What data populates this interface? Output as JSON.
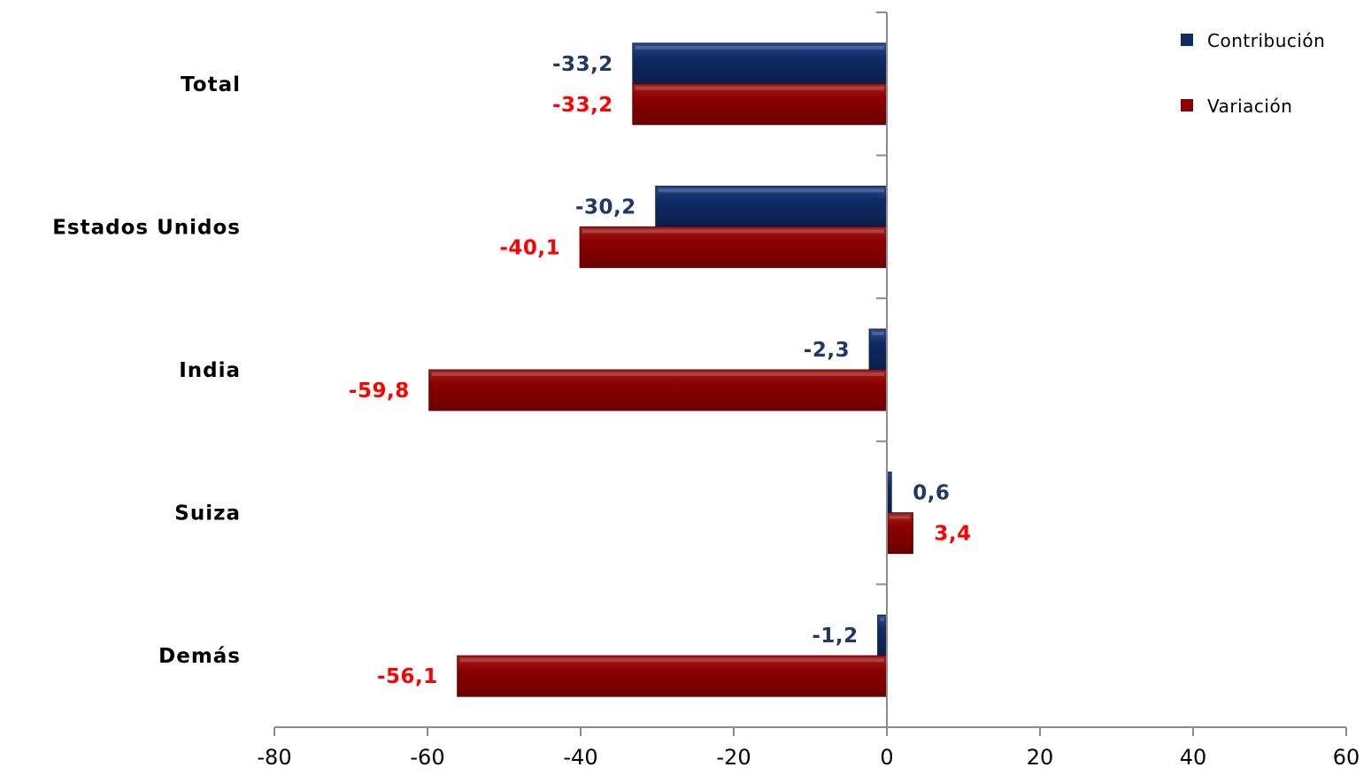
{
  "chart_data": {
    "type": "bar",
    "orientation": "horizontal",
    "categories": [
      "Total",
      "Estados Unidos",
      "India",
      "Suiza",
      "Demás"
    ],
    "series": [
      {
        "name": "Contribución",
        "values": [
          -33.2,
          -30.2,
          -2.3,
          0.6,
          -1.2
        ],
        "labels": [
          "-33,2",
          "-30,2",
          "-2,3",
          "0,6",
          "-1,2"
        ]
      },
      {
        "name": "Variación",
        "values": [
          -33.2,
          -40.1,
          -59.8,
          3.4,
          -56.1
        ],
        "labels": [
          "-33,2",
          "-40,1",
          "-59,8",
          "3,4",
          "-56,1"
        ]
      }
    ],
    "x_ticks": [
      "-80",
      "-60",
      "-40",
      "-20",
      "0",
      "20",
      "40",
      "60"
    ],
    "xlim": [
      -80,
      60
    ],
    "legend_position": "top-right",
    "grid": false,
    "colors": {
      "contribucion": "#0f2b63",
      "variacion": "#8b0000",
      "contribucion_label": "#1f3864",
      "variacion_label": "#ff0000",
      "axis": "#8c8c8c"
    }
  }
}
